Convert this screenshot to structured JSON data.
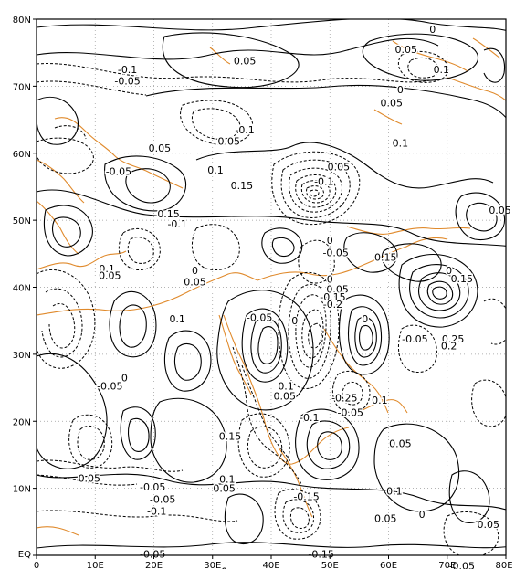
{
  "map": {
    "x_ticks": [
      "0",
      "10E",
      "20E",
      "30E",
      "40E",
      "50E",
      "60E",
      "70E",
      "80E"
    ],
    "y_ticks": [
      "EQ",
      "10N",
      "20N",
      "30N",
      "40N",
      "50N",
      "60N",
      "70N",
      "80N"
    ],
    "colors": {
      "contour": "#000000",
      "coastline": "#e08a2c",
      "grid": "#9a9a9a"
    },
    "contour_labels": [
      {
        "text": "0",
        "lon": 67.5,
        "lat": 78.5
      },
      {
        "text": "0.05",
        "lon": 63,
        "lat": 75.5
      },
      {
        "text": "0.1",
        "lon": 69,
        "lat": 72.5
      },
      {
        "text": "-0.1",
        "lon": 15.5,
        "lat": 72.5
      },
      {
        "text": "-0.05",
        "lon": 15.5,
        "lat": 70.8
      },
      {
        "text": "0.05",
        "lon": 35.5,
        "lat": 73.8
      },
      {
        "text": "0",
        "lon": 62,
        "lat": 69.5
      },
      {
        "text": "0.05",
        "lon": 60.5,
        "lat": 67.5
      },
      {
        "text": "-0.1",
        "lon": 35.5,
        "lat": 63.5
      },
      {
        "text": "-0.05",
        "lon": 32.5,
        "lat": 61.8
      },
      {
        "text": "0.05",
        "lon": 21,
        "lat": 60.8
      },
      {
        "text": "0.1",
        "lon": 62,
        "lat": 61.5
      },
      {
        "text": "0.1",
        "lon": 30.5,
        "lat": 57.5
      },
      {
        "text": "-0.05",
        "lon": 14,
        "lat": 57.3
      },
      {
        "text": "0.05",
        "lon": 51.5,
        "lat": 58
      },
      {
        "text": "-0.1",
        "lon": 49,
        "lat": 55.8
      },
      {
        "text": "0.15",
        "lon": 35,
        "lat": 55.2
      },
      {
        "text": "0.05",
        "lon": 79,
        "lat": 51.5
      },
      {
        "text": "0.15",
        "lon": 22.5,
        "lat": 51
      },
      {
        "text": "-0.1",
        "lon": 24,
        "lat": 49.5
      },
      {
        "text": "0",
        "lon": 50,
        "lat": 47
      },
      {
        "text": "-0.05",
        "lon": 51,
        "lat": 45.2
      },
      {
        "text": "0.15",
        "lon": 59.5,
        "lat": 44.5
      },
      {
        "text": "0.1",
        "lon": 12,
        "lat": 42.8
      },
      {
        "text": "0.05",
        "lon": 12.5,
        "lat": 41.8
      },
      {
        "text": "0",
        "lon": 27,
        "lat": 42.5
      },
      {
        "text": "0.05",
        "lon": 27,
        "lat": 40.8
      },
      {
        "text": "0",
        "lon": 50,
        "lat": 41.2
      },
      {
        "text": "-0.05",
        "lon": 51,
        "lat": 39.7
      },
      {
        "text": "-0.15",
        "lon": 50.5,
        "lat": 38.6
      },
      {
        "text": "-0.2",
        "lon": 50.5,
        "lat": 37.5
      },
      {
        "text": "0",
        "lon": 70.3,
        "lat": 42.5
      },
      {
        "text": "0.15",
        "lon": 72.5,
        "lat": 41.3
      },
      {
        "text": "0.1",
        "lon": 24,
        "lat": 35.3
      },
      {
        "text": "-0.05",
        "lon": 38,
        "lat": 35.5
      },
      {
        "text": "0",
        "lon": 44,
        "lat": 35
      },
      {
        "text": "0",
        "lon": 56,
        "lat": 35.3
      },
      {
        "text": "-0.05",
        "lon": 64.5,
        "lat": 32.3
      },
      {
        "text": "0.25",
        "lon": 71,
        "lat": 32.3
      },
      {
        "text": "0.2",
        "lon": 70.3,
        "lat": 31.3
      },
      {
        "text": "-0.05",
        "lon": 12.5,
        "lat": 25.3
      },
      {
        "text": "0",
        "lon": 15,
        "lat": 26.5
      },
      {
        "text": "0.1",
        "lon": 42.5,
        "lat": 25.3
      },
      {
        "text": "0.05",
        "lon": 42.3,
        "lat": 23.8
      },
      {
        "text": "-0.25",
        "lon": 52.5,
        "lat": 23.5
      },
      {
        "text": "0.1",
        "lon": 58.5,
        "lat": 23.2
      },
      {
        "text": "-0.05",
        "lon": 53.5,
        "lat": 21.3
      },
      {
        "text": "-0.1",
        "lon": 46.5,
        "lat": 20.6
      },
      {
        "text": "0.15",
        "lon": 33,
        "lat": 17.8
      },
      {
        "text": "0.05",
        "lon": 62,
        "lat": 16.7
      },
      {
        "text": "0.05",
        "lon": 9,
        "lat": 11.5
      },
      {
        "text": "-0.05",
        "lon": 19.8,
        "lat": 10.2
      },
      {
        "text": "0.1",
        "lon": 32.5,
        "lat": 11.4
      },
      {
        "text": "0.05",
        "lon": 32,
        "lat": 10
      },
      {
        "text": "-0.05",
        "lon": 21.5,
        "lat": 8.4
      },
      {
        "text": "-0.15",
        "lon": 46,
        "lat": 8.8
      },
      {
        "text": "0.1",
        "lon": 61,
        "lat": 9.6
      },
      {
        "text": "-0.1",
        "lon": 20.5,
        "lat": 6.6
      },
      {
        "text": "0.05",
        "lon": 59.5,
        "lat": 5.5
      },
      {
        "text": "0.05",
        "lon": 77,
        "lat": 4.6
      },
      {
        "text": "-0.05",
        "lon": 19.8,
        "lat": 0.2
      },
      {
        "text": "-0.15",
        "lon": 48.5,
        "lat": 0.2
      },
      {
        "text": "0",
        "lon": 65.7,
        "lat": 6.1
      },
      {
        "text": "-0.05",
        "lon": 72.5,
        "lat": -1.6
      },
      {
        "text": "0",
        "lon": 32,
        "lat": -2.4
      }
    ]
  }
}
